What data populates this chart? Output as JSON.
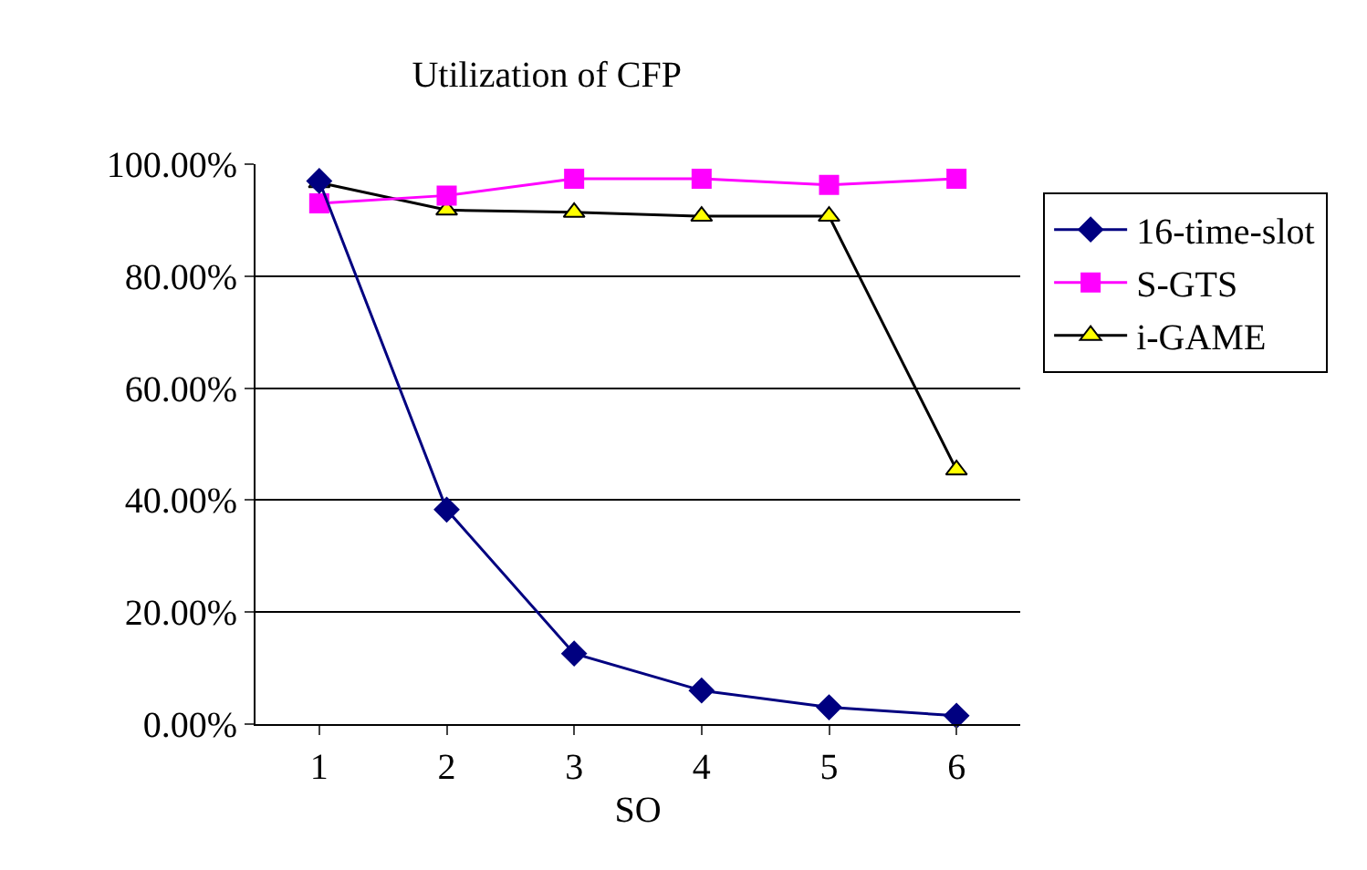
{
  "chart_data": {
    "type": "line",
    "title": "Utilization of CFP",
    "xlabel": "SO",
    "categories": [
      "1",
      "2",
      "3",
      "4",
      "5",
      "6"
    ],
    "series": [
      {
        "name": "16-time-slot",
        "color": "#000080",
        "marker": "diamond",
        "values": [
          97,
          38.3,
          12.6,
          6,
          3,
          1.5
        ]
      },
      {
        "name": "S-GTS",
        "color": "#ff00ff",
        "marker": "square",
        "values": [
          93,
          94.4,
          97.4,
          97.4,
          96.3,
          97.4
        ]
      },
      {
        "name": "i-GAME",
        "color": "#000000",
        "marker": "triangle",
        "values": [
          96.7,
          91.8,
          91.4,
          90.7,
          90.7,
          45.4
        ]
      }
    ],
    "ylim": [
      0,
      100
    ],
    "yticks": [
      {
        "value": 0,
        "label": "0.00%"
      },
      {
        "value": 20,
        "label": "20.00%"
      },
      {
        "value": 40,
        "label": "40.00%"
      },
      {
        "value": 60,
        "label": "60.00%"
      },
      {
        "value": 80,
        "label": "80.00%"
      },
      {
        "value": 100,
        "label": "100.00%"
      }
    ],
    "grid": "y",
    "legend": "right"
  }
}
